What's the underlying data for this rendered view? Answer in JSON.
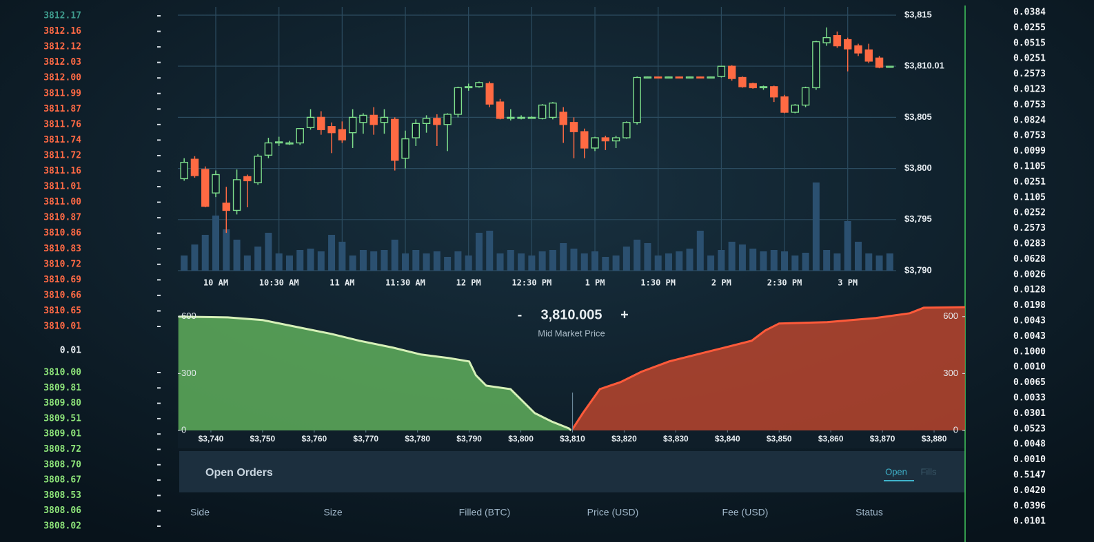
{
  "order_book": {
    "asks": [
      "3812.17",
      "3812.16",
      "3812.12",
      "3812.03",
      "3812.00",
      "3811.99",
      "3811.87",
      "3811.76",
      "3811.74",
      "3811.72",
      "3811.16",
      "3811.01",
      "3811.00",
      "3810.87",
      "3810.86",
      "3810.83",
      "3810.72",
      "3810.69",
      "3810.66",
      "3810.65",
      "3810.01"
    ],
    "spread": "0.01",
    "bids": [
      "3810.00",
      "3809.81",
      "3809.80",
      "3809.51",
      "3809.01",
      "3808.72",
      "3808.70",
      "3808.67",
      "3808.53",
      "3808.06",
      "3808.02"
    ]
  },
  "sizes": [
    "0.0384",
    "0.0255",
    "0.0515",
    "0.0251",
    "0.2573",
    "0.0123",
    "0.0753",
    "0.0824",
    "0.0753",
    "0.0099",
    "0.1105",
    "0.0251",
    "0.1105",
    "0.0252",
    "0.2573",
    "0.0283",
    "0.0628",
    "0.0026",
    "0.0128",
    "0.0198",
    "0.0043",
    "0.0043",
    "0.1000",
    "0.0010",
    "0.0065",
    "0.0033",
    "0.0301",
    "0.0523",
    "0.0048",
    "0.0010",
    "0.5147",
    "0.0420",
    "0.0396",
    "0.0101"
  ],
  "chart_data": [
    {
      "type": "candlestick",
      "x": [
        585,
        590,
        595,
        600,
        605,
        610,
        615,
        620,
        625,
        630,
        635,
        640,
        645,
        650,
        655,
        660,
        665,
        670,
        675,
        680,
        685,
        690,
        695,
        700,
        705,
        710,
        715,
        720,
        725,
        730,
        735,
        740,
        745,
        750,
        755,
        760,
        765,
        770,
        775,
        780,
        785,
        790,
        795,
        800,
        805,
        810,
        815,
        820,
        825,
        830,
        835,
        840,
        845,
        850,
        855,
        860,
        865,
        870,
        875,
        880,
        885,
        890,
        895,
        900,
        905,
        910,
        915,
        920
      ],
      "open": [
        3799.0,
        3800.9,
        3799.9,
        3797.6,
        3796.6,
        3795.9,
        3799.2,
        3798.6,
        3801.3,
        3802.5,
        3802.5,
        3802.5,
        3804.0,
        3805.0,
        3804.1,
        3803.8,
        3803.5,
        3804.5,
        3805.2,
        3804.5,
        3804.8,
        3801.0,
        3803.0,
        3804.4,
        3804.9,
        3804.3,
        3805.3,
        3807.9,
        3808.0,
        3808.3,
        3806.5,
        3804.9,
        3805.0,
        3805.0,
        3804.9,
        3805.0,
        3805.5,
        3804.5,
        3803.6,
        3802.0,
        3803.0,
        3802.7,
        3803.0,
        3804.5,
        3808.9,
        3808.95,
        3808.85,
        3808.95,
        3808.85,
        3808.95,
        3808.85,
        3809.0,
        3810.0,
        3808.9,
        3808.3,
        3807.9,
        3808.0,
        3807.0,
        3805.5,
        3806.2,
        3807.9,
        3812.3,
        3813.0,
        3812.6,
        3812.0,
        3811.6,
        3810.8,
        3810.0
      ],
      "high": [
        3801.0,
        3801.2,
        3800.2,
        3799.8,
        3798.2,
        3799.9,
        3799.4,
        3801.4,
        3803.0,
        3803.1,
        3802.7,
        3803.9,
        3805.8,
        3805.6,
        3804.5,
        3804.6,
        3805.8,
        3805.4,
        3806.0,
        3805.8,
        3805.0,
        3803.7,
        3804.8,
        3805.2,
        3805.3,
        3805.4,
        3808.0,
        3808.3,
        3808.5,
        3808.5,
        3806.8,
        3805.8,
        3805.2,
        3805.1,
        3806.3,
        3806.5,
        3806.0,
        3805.0,
        3803.9,
        3803.1,
        3803.2,
        3803.2,
        3804.6,
        3809.0,
        3809.0,
        3809.0,
        3809.0,
        3809.0,
        3809.0,
        3809.0,
        3809.0,
        3810.0,
        3810.1,
        3809.0,
        3808.4,
        3808.1,
        3808.1,
        3807.2,
        3806.3,
        3808.0,
        3812.5,
        3813.8,
        3813.4,
        3812.8,
        3812.2,
        3812.2,
        3811.0,
        3810.0
      ],
      "low": [
        3798.8,
        3799.1,
        3796.2,
        3797.2,
        3793.7,
        3795.5,
        3796.2,
        3798.4,
        3801.0,
        3802.2,
        3802.3,
        3802.3,
        3803.8,
        3803.3,
        3801.5,
        3802.5,
        3802.0,
        3803.4,
        3803.3,
        3803.4,
        3799.8,
        3800.0,
        3802.2,
        3803.5,
        3802.2,
        3801.7,
        3805.0,
        3807.6,
        3807.9,
        3806.0,
        3804.8,
        3804.7,
        3804.8,
        3804.9,
        3804.8,
        3804.8,
        3802.5,
        3801.0,
        3801.0,
        3801.7,
        3801.8,
        3802.0,
        3802.9,
        3804.3,
        3808.8,
        3808.8,
        3808.8,
        3808.8,
        3808.8,
        3808.8,
        3808.8,
        3808.9,
        3808.6,
        3807.9,
        3807.8,
        3807.7,
        3806.5,
        3805.4,
        3805.4,
        3806.0,
        3807.7,
        3812.0,
        3811.8,
        3809.5,
        3811.0,
        3810.3,
        3809.8,
        3810.0
      ],
      "close": [
        3800.6,
        3799.3,
        3796.3,
        3799.4,
        3795.9,
        3798.9,
        3798.8,
        3801.2,
        3802.5,
        3802.6,
        3802.5,
        3803.9,
        3805.0,
        3803.8,
        3803.5,
        3802.8,
        3805.0,
        3805.2,
        3804.3,
        3805.0,
        3800.8,
        3802.9,
        3804.4,
        3804.9,
        3804.3,
        3805.3,
        3807.9,
        3808.0,
        3808.4,
        3806.3,
        3804.9,
        3805.0,
        3805.0,
        3805.0,
        3806.2,
        3806.4,
        3804.3,
        3803.6,
        3802.0,
        3803.0,
        3802.7,
        3803.0,
        3804.5,
        3808.9,
        3808.95,
        3808.85,
        3808.95,
        3808.85,
        3808.95,
        3808.85,
        3808.95,
        3810.0,
        3808.8,
        3808.0,
        3807.9,
        3808.0,
        3807.0,
        3805.5,
        3806.2,
        3807.9,
        3812.4,
        3812.8,
        3812.0,
        3811.7,
        3811.3,
        3810.5,
        3809.9,
        3810.0
      ],
      "volume": [
        22,
        38,
        52,
        80,
        60,
        45,
        22,
        35,
        55,
        25,
        22,
        30,
        32,
        28,
        52,
        42,
        22,
        30,
        28,
        30,
        45,
        25,
        30,
        25,
        28,
        20,
        28,
        22,
        55,
        58,
        25,
        30,
        25,
        22,
        28,
        30,
        40,
        32,
        25,
        28,
        20,
        22,
        35,
        45,
        40,
        22,
        25,
        28,
        32,
        58,
        22,
        30,
        42,
        38,
        32,
        28,
        30,
        28,
        22,
        26,
        128,
        30,
        25,
        72,
        42,
        25,
        22,
        25
      ],
      "up_color": "#7fe08c",
      "down_color": "#ff6a43",
      "volume_color": "#2b5070",
      "grid": true,
      "grid_color": "#2c4c60",
      "xlim": [
        582,
        923
      ],
      "xticks": [
        {
          "value": 600,
          "label": "10 AM"
        },
        {
          "value": 630,
          "label": "10:30 AM"
        },
        {
          "value": 660,
          "label": "11 AM"
        },
        {
          "value": 690,
          "label": "11:30 AM"
        },
        {
          "value": 720,
          "label": "12 PM"
        },
        {
          "value": 750,
          "label": "12:30 PM"
        },
        {
          "value": 780,
          "label": "1 PM"
        },
        {
          "value": 810,
          "label": "1:30 PM"
        },
        {
          "value": 840,
          "label": "2 PM"
        },
        {
          "value": 870,
          "label": "2:30 PM"
        },
        {
          "value": 900,
          "label": "3 PM"
        }
      ],
      "ylim": [
        3790,
        3815
      ],
      "yticks": [
        {
          "value": 3815,
          "label": "$3,815"
        },
        {
          "value": 3810.01,
          "label": "$3,810.01"
        },
        {
          "value": 3805,
          "label": "$3,805"
        },
        {
          "value": 3800,
          "label": "$3,800"
        },
        {
          "value": 3795,
          "label": "$3,795"
        },
        {
          "value": 3790,
          "label": "$3,790"
        }
      ]
    },
    {
      "type": "depth",
      "title": "Mid Market Price",
      "mid_price": {
        "value": 3810.005,
        "label": "3,810.005"
      },
      "decrement": "-",
      "increment": "+",
      "series": [
        {
          "color": "#5fae5c",
          "line_color": "#d6f0b8",
          "x": [
            3733.7,
            3743.3,
            3750,
            3756.7,
            3763.3,
            3768.7,
            3775.3,
            3780.7,
            3786,
            3790,
            3791.3,
            3793.3,
            3798,
            3800.7,
            3802.7,
            3806,
            3809.3,
            3809.7
          ],
          "values": [
            600,
            596,
            582,
            545,
            509,
            473,
            436,
            400,
            382,
            364,
            291,
            236,
            218,
            145,
            91,
            47,
            11,
            0
          ]
        },
        {
          "color": "#b8452e",
          "line_color": "#ff5a3a",
          "x": [
            3810,
            3812,
            3815.3,
            3819.3,
            3823.3,
            3828.7,
            3834,
            3839.3,
            3844.7,
            3847.3,
            3850,
            3859.3,
            3868.7,
            3875.3,
            3878,
            3886
          ],
          "values": [
            7,
            91,
            218,
            255,
            309,
            364,
            400,
            436,
            473,
            527,
            564,
            571,
            593,
            618,
            647,
            650
          ]
        }
      ],
      "xlim": [
        3733.6,
        3886
      ],
      "xticks": [
        {
          "value": 3740,
          "label": "$3,740"
        },
        {
          "value": 3750,
          "label": "$3,750"
        },
        {
          "value": 3760,
          "label": "$3,760"
        },
        {
          "value": 3770,
          "label": "$3,770"
        },
        {
          "value": 3780,
          "label": "$3,780"
        },
        {
          "value": 3790,
          "label": "$3,790"
        },
        {
          "value": 3800,
          "label": "$3,800"
        },
        {
          "value": 3810,
          "label": "$3,810"
        },
        {
          "value": 3820,
          "label": "$3,820"
        },
        {
          "value": 3830,
          "label": "$3,830"
        },
        {
          "value": 3840,
          "label": "$3,840"
        },
        {
          "value": 3850,
          "label": "$3,850"
        },
        {
          "value": 3860,
          "label": "$3,860"
        },
        {
          "value": 3870,
          "label": "$3,870"
        },
        {
          "value": 3880,
          "label": "$3,880"
        }
      ],
      "ylim": [
        0,
        650
      ],
      "yticks": [
        0,
        300,
        600
      ]
    }
  ],
  "open_orders": {
    "title": "Open Orders",
    "tabs": [
      "Open",
      "Fills"
    ],
    "columns": [
      "Side",
      "Size",
      "Filled (BTC)",
      "Price (USD)",
      "Fee (USD)",
      "Status"
    ]
  }
}
